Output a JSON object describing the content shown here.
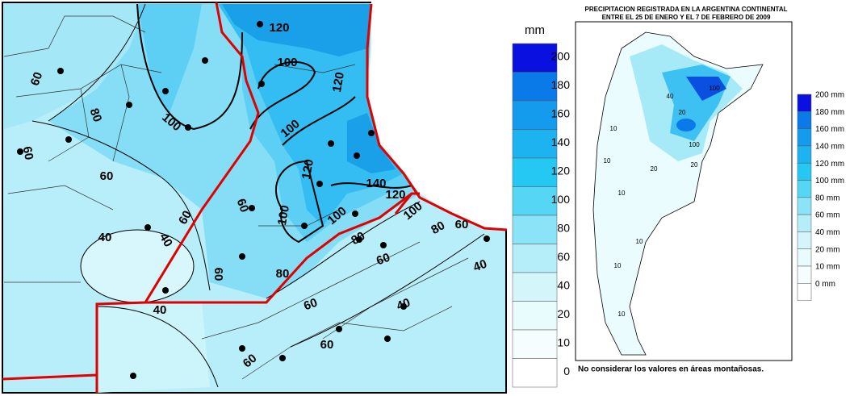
{
  "left_map": {
    "contour_labels": [
      60,
      80,
      100,
      120,
      100,
      120,
      100,
      120,
      140,
      120,
      100,
      80,
      60,
      100,
      100,
      80,
      60,
      80,
      60,
      60,
      60,
      40,
      40,
      60,
      60,
      40,
      60,
      40,
      40,
      60,
      60
    ]
  },
  "legend": {
    "unit": "mm",
    "values": [
      200,
      180,
      160,
      140,
      120,
      100,
      80,
      60,
      40,
      20,
      10,
      0
    ]
  },
  "right_map": {
    "title": "PRECIPITACION REGISTRADA EN LA ARGENTINA CONTINENTAL",
    "subtitle": "ENTRE EL 25 DE ENERO Y EL 7 DE FEBRERO DE 2009",
    "legend": [
      "200 mm",
      "180 mm",
      "160 mm",
      "140 mm",
      "120 mm",
      "100 mm",
      "80 mm",
      "60 mm",
      "40 mm",
      "20 mm",
      "10 mm",
      "0 mm"
    ],
    "contour_labels": [
      10,
      10,
      10,
      20,
      20,
      10,
      10,
      10,
      40,
      100,
      100,
      20
    ],
    "footnote": "No considerar los valores en áreas montañosas."
  }
}
